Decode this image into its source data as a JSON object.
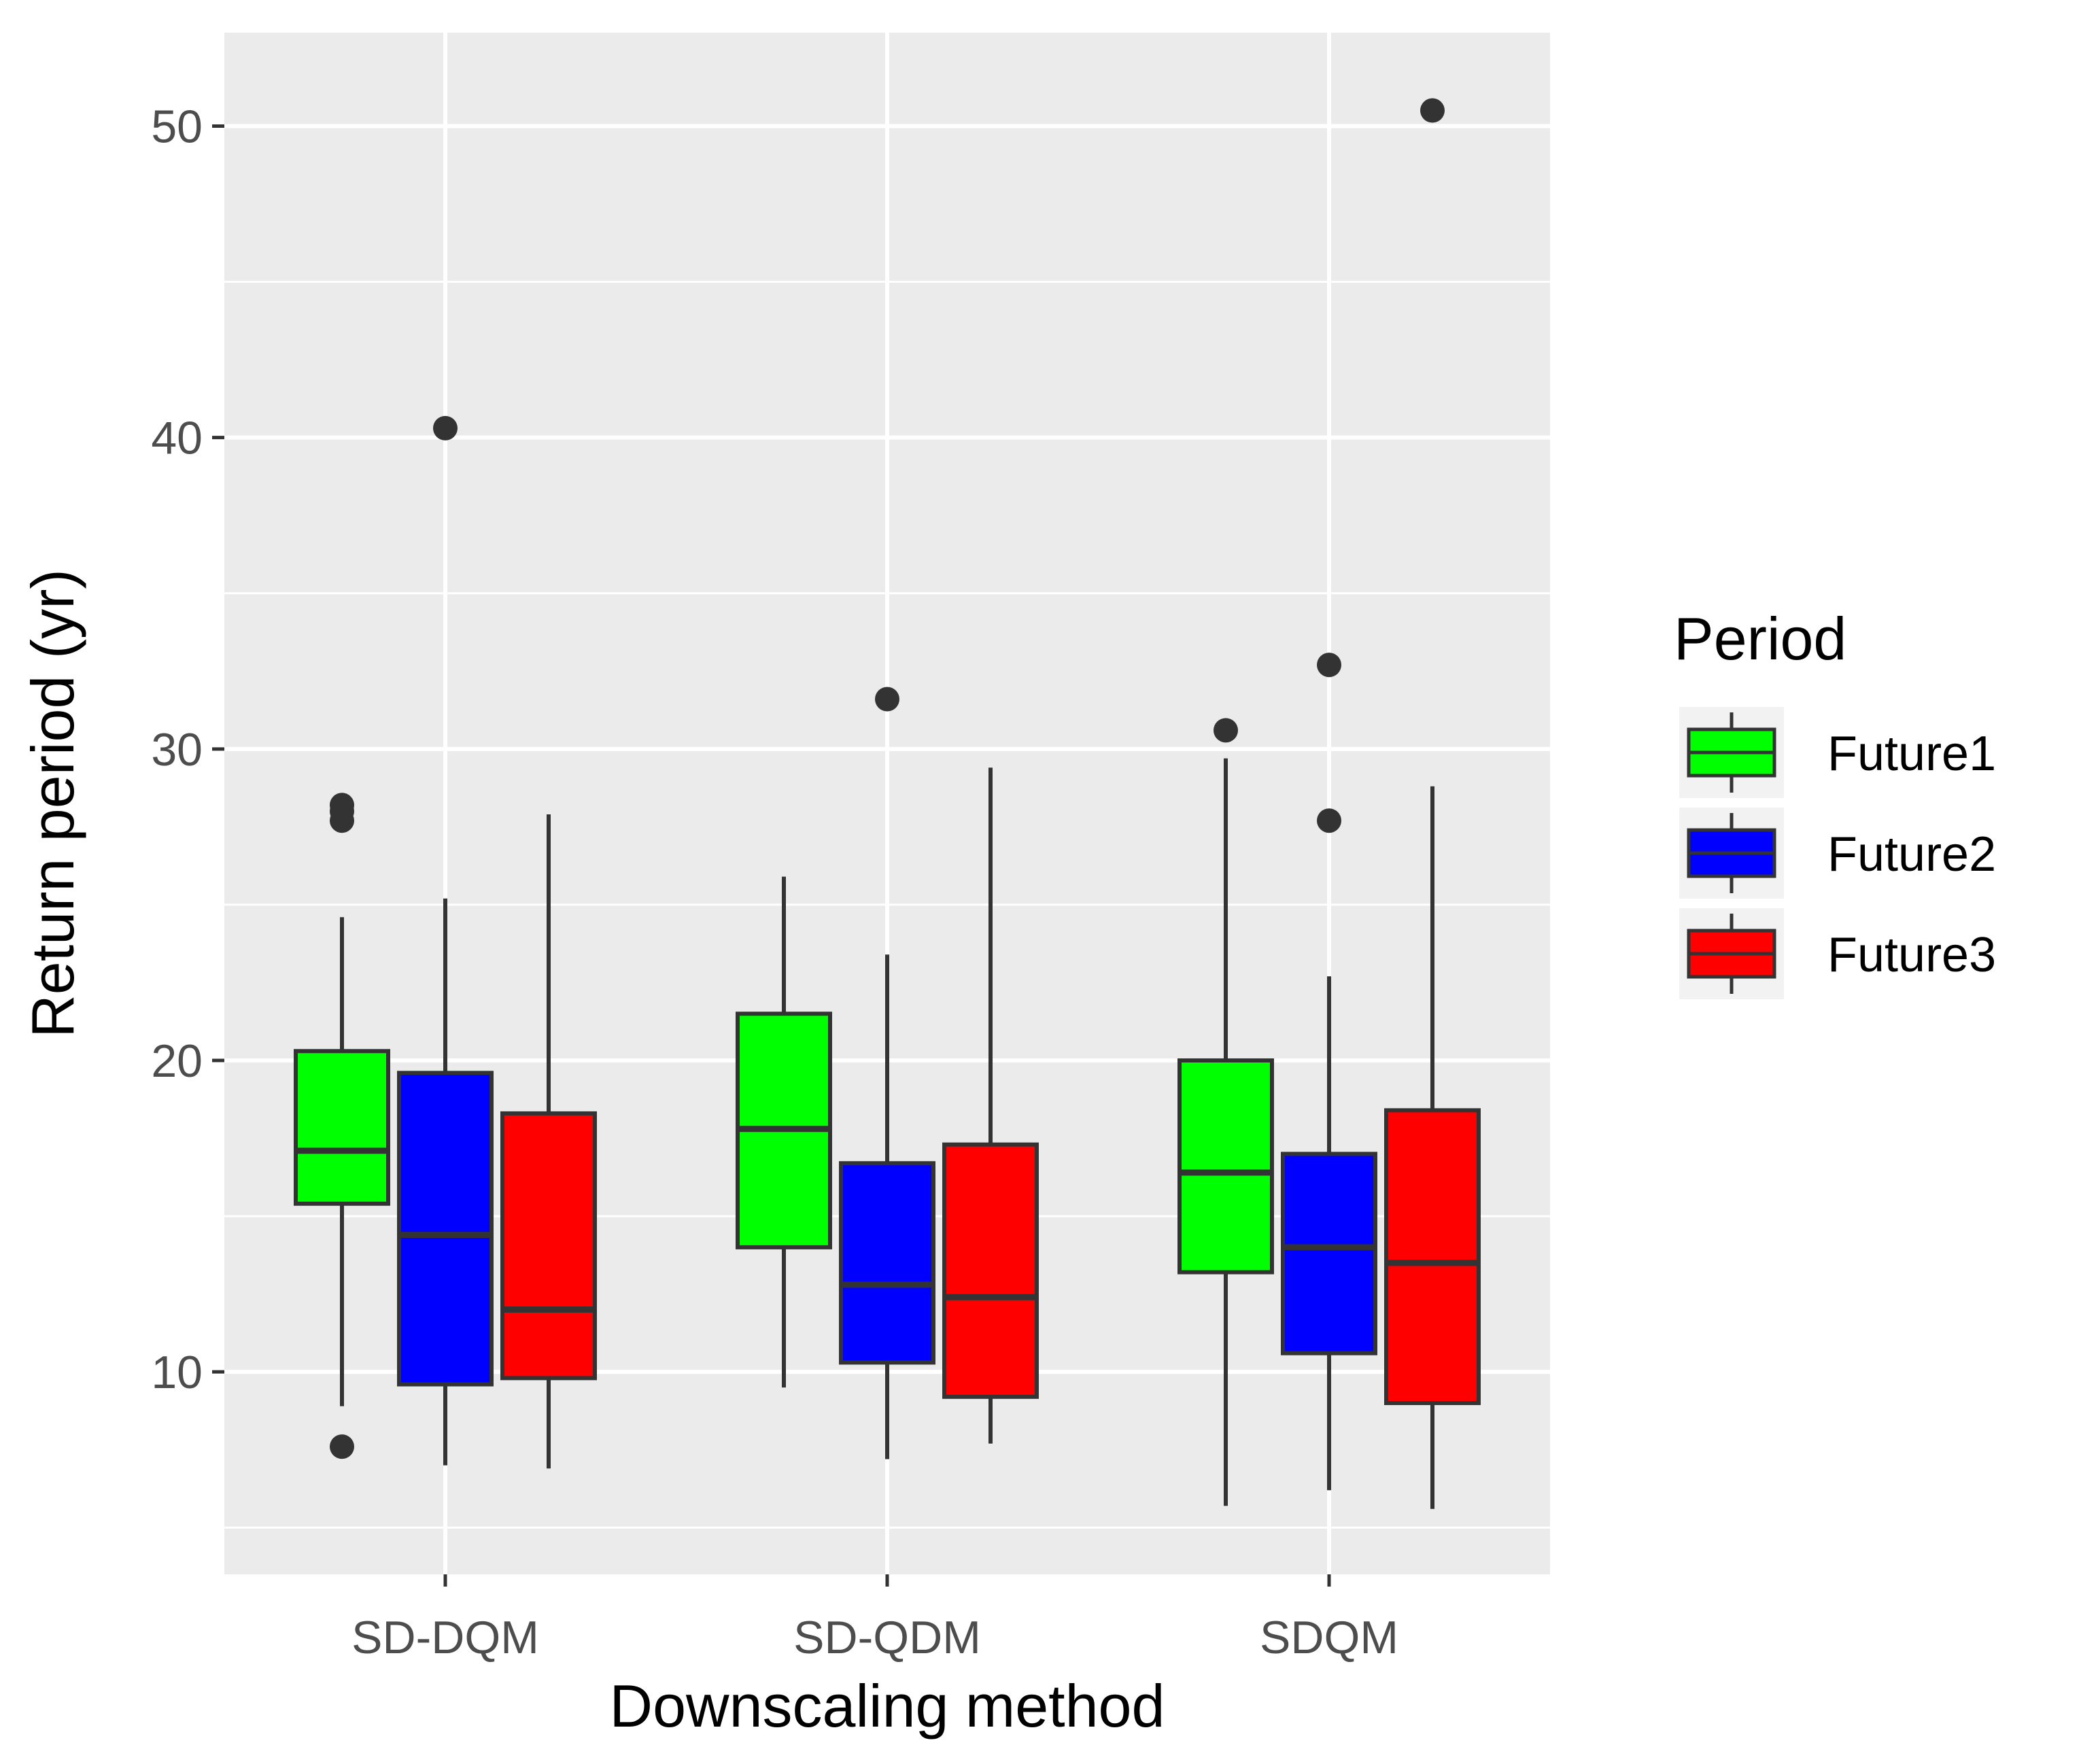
{
  "chart_data": {
    "type": "boxplot",
    "xlabel": "Downscaling method",
    "ylabel": "Return period (yr)",
    "categories": [
      "SD-DQM",
      "SD-QDM",
      "SDQM"
    ],
    "yticks": [
      10,
      20,
      30,
      40,
      50
    ],
    "ylim": [
      3.5,
      53
    ],
    "grid": true,
    "legend": {
      "title": "Period",
      "placement": "right"
    },
    "series": [
      {
        "name": "Future1",
        "color": "#00ff00",
        "boxes": [
          {
            "category": "SD-DQM",
            "lower_whisker": 8.9,
            "q1": 15.4,
            "median": 17.1,
            "q3": 20.3,
            "upper_whisker": 24.6,
            "outliers": [
              7.6,
              27.7,
              28.0,
              28.2
            ]
          },
          {
            "category": "SD-QDM",
            "lower_whisker": 9.5,
            "q1": 14.0,
            "median": 17.8,
            "q3": 21.5,
            "upper_whisker": 25.9,
            "outliers": []
          },
          {
            "category": "SDQM",
            "lower_whisker": 5.7,
            "q1": 13.2,
            "median": 16.4,
            "q3": 20.0,
            "upper_whisker": 29.7,
            "outliers": [
              30.6
            ]
          }
        ]
      },
      {
        "name": "Future2",
        "color": "#0000ff",
        "boxes": [
          {
            "category": "SD-DQM",
            "lower_whisker": 7.0,
            "q1": 9.6,
            "median": 14.4,
            "q3": 19.6,
            "upper_whisker": 25.2,
            "outliers": [
              40.3
            ]
          },
          {
            "category": "SD-QDM",
            "lower_whisker": 7.2,
            "q1": 10.3,
            "median": 12.8,
            "q3": 16.7,
            "upper_whisker": 23.4,
            "outliers": [
              31.6
            ]
          },
          {
            "category": "SDQM",
            "lower_whisker": 6.2,
            "q1": 10.6,
            "median": 14.0,
            "q3": 17.0,
            "upper_whisker": 22.7,
            "outliers": [
              27.7,
              32.7
            ]
          }
        ]
      },
      {
        "name": "Future3",
        "color": "#ff0000",
        "boxes": [
          {
            "category": "SD-DQM",
            "lower_whisker": 6.9,
            "q1": 9.8,
            "median": 12.0,
            "q3": 18.3,
            "upper_whisker": 27.9,
            "outliers": []
          },
          {
            "category": "SD-QDM",
            "lower_whisker": 7.7,
            "q1": 9.2,
            "median": 12.4,
            "q3": 17.3,
            "upper_whisker": 29.4,
            "outliers": []
          },
          {
            "category": "SDQM",
            "lower_whisker": 5.6,
            "q1": 9.0,
            "median": 13.5,
            "q3": 18.4,
            "upper_whisker": 28.8,
            "outliers": [
              50.5
            ]
          }
        ]
      }
    ]
  }
}
